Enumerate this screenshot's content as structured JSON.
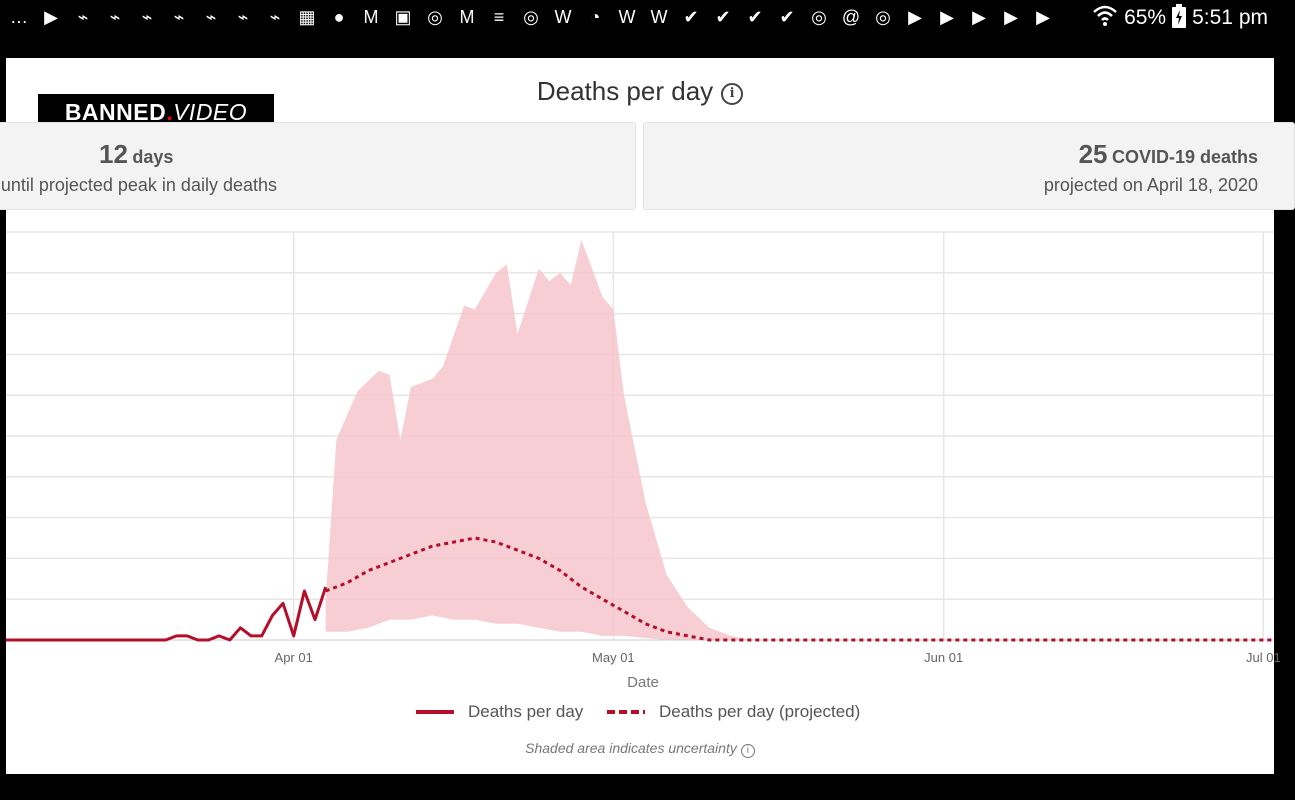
{
  "status_bar": {
    "battery": "65%",
    "time": "5:51 pm",
    "notification_icons": [
      "messages-icon",
      "youtube-icon",
      "messenger-icon",
      "messenger-icon",
      "messenger-icon",
      "messenger-icon",
      "messenger-icon",
      "messenger-icon",
      "messenger-icon",
      "calendar-icon",
      "chat-icon",
      "gmail-icon",
      "gallery-icon",
      "instagram-icon",
      "gmail-icon",
      "news-icon",
      "instagram-icon",
      "wordpress-icon",
      "chrome-icon",
      "wordpress-icon",
      "wordpress-icon",
      "check-icon",
      "check-icon",
      "check-icon",
      "check-icon",
      "instagram-icon",
      "at-icon",
      "instagram-icon",
      "youtube-icon",
      "youtube-icon",
      "youtube-icon",
      "youtube-icon",
      "youtube-icon"
    ]
  },
  "logo": {
    "part1": "BANNED",
    "dot": ".",
    "part2": "VIDEO"
  },
  "title": "Deaths per day",
  "cards": [
    {
      "value": "12",
      "unit": "days",
      "caption": "until projected peak in daily deaths"
    },
    {
      "value": "25",
      "unit": "COVID-19 deaths",
      "caption": "projected on April 18, 2020"
    }
  ],
  "legend": {
    "actual": "Deaths per day",
    "projected": "Deaths per day (projected)"
  },
  "note": "Shaded area indicates uncertainty",
  "colors": {
    "line": "#b50e2a",
    "band": "#f5c5cb",
    "grid": "#e6e6e6"
  },
  "chart_data": {
    "type": "line",
    "xlabel": "Date",
    "ylabel": "",
    "x_ticks": [
      {
        "label": "Apr 01",
        "date": "2020-04-01"
      },
      {
        "label": "May 01",
        "date": "2020-05-01"
      },
      {
        "label": "Jun 01",
        "date": "2020-06-01"
      },
      {
        "label": "Jul 01",
        "date": "2020-07-01"
      }
    ],
    "xlim": [
      "2020-03-05",
      "2020-07-02"
    ],
    "ylim": [
      0,
      100
    ],
    "grid": true,
    "series": [
      {
        "name": "Deaths per day",
        "style": "solid",
        "points": [
          [
            "2020-03-05",
            0
          ],
          [
            "2020-03-20",
            0
          ],
          [
            "2020-03-21",
            1
          ],
          [
            "2020-03-22",
            1
          ],
          [
            "2020-03-23",
            0
          ],
          [
            "2020-03-24",
            0
          ],
          [
            "2020-03-25",
            1
          ],
          [
            "2020-03-26",
            0
          ],
          [
            "2020-03-27",
            3
          ],
          [
            "2020-03-28",
            1
          ],
          [
            "2020-03-29",
            1
          ],
          [
            "2020-03-30",
            6
          ],
          [
            "2020-03-31",
            9
          ],
          [
            "2020-04-01",
            1
          ],
          [
            "2020-04-02",
            12
          ],
          [
            "2020-04-03",
            5
          ],
          [
            "2020-04-04",
            13
          ]
        ]
      },
      {
        "name": "Deaths per day (projected)",
        "style": "dashed",
        "points": [
          [
            "2020-04-04",
            12
          ],
          [
            "2020-04-06",
            14
          ],
          [
            "2020-04-08",
            17
          ],
          [
            "2020-04-10",
            19
          ],
          [
            "2020-04-12",
            21
          ],
          [
            "2020-04-14",
            23
          ],
          [
            "2020-04-16",
            24
          ],
          [
            "2020-04-18",
            25
          ],
          [
            "2020-04-20",
            24
          ],
          [
            "2020-04-22",
            22
          ],
          [
            "2020-04-24",
            20
          ],
          [
            "2020-04-26",
            17
          ],
          [
            "2020-04-28",
            13
          ],
          [
            "2020-04-30",
            10
          ],
          [
            "2020-05-02",
            7
          ],
          [
            "2020-05-04",
            4
          ],
          [
            "2020-05-06",
            2
          ],
          [
            "2020-05-08",
            1
          ],
          [
            "2020-05-10",
            0
          ],
          [
            "2020-05-15",
            0
          ],
          [
            "2020-06-01",
            0
          ],
          [
            "2020-07-02",
            0
          ]
        ]
      }
    ],
    "uncertainty_band": {
      "upper": [
        [
          "2020-04-04",
          10
        ],
        [
          "2020-04-05",
          49
        ],
        [
          "2020-04-07",
          61
        ],
        [
          "2020-04-09",
          66
        ],
        [
          "2020-04-10",
          65
        ],
        [
          "2020-04-11",
          49
        ],
        [
          "2020-04-12",
          62
        ],
        [
          "2020-04-14",
          64
        ],
        [
          "2020-04-15",
          67
        ],
        [
          "2020-04-17",
          82
        ],
        [
          "2020-04-18",
          81
        ],
        [
          "2020-04-20",
          90
        ],
        [
          "2020-04-21",
          92
        ],
        [
          "2020-04-22",
          75
        ],
        [
          "2020-04-24",
          91
        ],
        [
          "2020-04-25",
          88
        ],
        [
          "2020-04-26",
          90
        ],
        [
          "2020-04-27",
          87
        ],
        [
          "2020-04-28",
          98
        ],
        [
          "2020-04-30",
          84
        ],
        [
          "2020-05-01",
          81
        ],
        [
          "2020-05-02",
          60
        ],
        [
          "2020-05-04",
          34
        ],
        [
          "2020-05-06",
          16
        ],
        [
          "2020-05-08",
          8
        ],
        [
          "2020-05-10",
          3
        ],
        [
          "2020-05-12",
          1
        ],
        [
          "2020-05-14",
          0
        ]
      ],
      "lower": [
        [
          "2020-04-04",
          2
        ],
        [
          "2020-04-06",
          2
        ],
        [
          "2020-04-08",
          3
        ],
        [
          "2020-04-10",
          5
        ],
        [
          "2020-04-12",
          5
        ],
        [
          "2020-04-14",
          6
        ],
        [
          "2020-04-16",
          5
        ],
        [
          "2020-04-18",
          5
        ],
        [
          "2020-04-20",
          4
        ],
        [
          "2020-04-22",
          4
        ],
        [
          "2020-04-24",
          3
        ],
        [
          "2020-04-26",
          2
        ],
        [
          "2020-04-28",
          2
        ],
        [
          "2020-04-30",
          1
        ],
        [
          "2020-05-02",
          1
        ],
        [
          "2020-05-06",
          0
        ],
        [
          "2020-05-14",
          0
        ]
      ]
    }
  }
}
